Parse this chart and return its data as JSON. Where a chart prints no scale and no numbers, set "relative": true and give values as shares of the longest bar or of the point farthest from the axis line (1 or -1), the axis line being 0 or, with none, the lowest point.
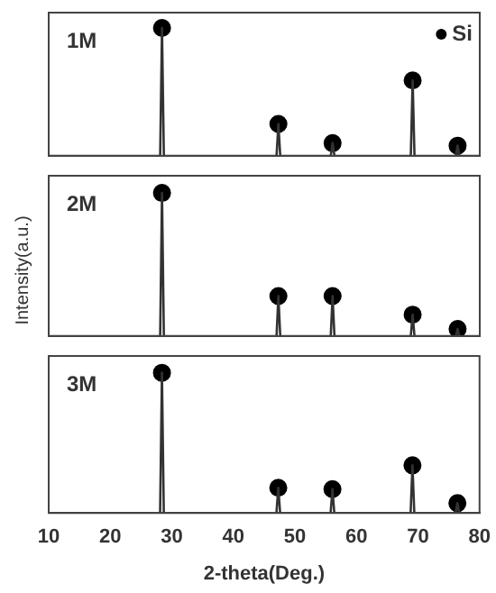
{
  "chart_data": [
    {
      "type": "line",
      "relative": true,
      "annotations": [
        "1M"
      ],
      "xlim": [
        10,
        80
      ],
      "xticks": [
        10,
        20,
        30,
        40,
        50,
        60,
        70,
        80
      ],
      "tick_labels": false,
      "legend": "top right",
      "series": [
        {
          "color": "#333333",
          "marker": "none",
          "x": [
            10,
            28.1,
            28.4,
            28.7,
            47.0,
            47.3,
            47.6,
            55.8,
            56.1,
            56.4,
            68.8,
            69.1,
            69.4,
            76.1,
            76.4,
            76.7,
            80
          ],
          "values": [
            0,
            0,
            1,
            0,
            0,
            0.25,
            0,
            0,
            0.1,
            0,
            0,
            0.59,
            0,
            0,
            0.08,
            0,
            0
          ]
        },
        {
          "type": "scatter",
          "name": "Si",
          "color": "#000000",
          "marker": "circle",
          "x": [
            28.4,
            47.3,
            56.1,
            69.1,
            76.4
          ],
          "values": [
            1,
            0.25,
            0.1,
            0.59,
            0.08
          ]
        }
      ]
    },
    {
      "type": "line",
      "relative": true,
      "annotations": [
        "2M"
      ],
      "ylabel": "Intensity(a.u.)",
      "xlim": [
        10,
        80
      ],
      "xticks": [
        10,
        20,
        30,
        40,
        50,
        60,
        70,
        80
      ],
      "tick_labels": false,
      "series": [
        {
          "color": "#333333",
          "marker": "none",
          "x": [
            10,
            28.1,
            28.4,
            28.7,
            47.0,
            47.3,
            47.6,
            55.8,
            56.1,
            56.4,
            68.8,
            69.1,
            69.4,
            76.1,
            76.4,
            76.7,
            80
          ],
          "values": [
            0,
            0,
            1,
            0,
            0,
            0.28,
            0,
            0,
            0.28,
            0,
            0,
            0.15,
            0,
            0,
            0.05,
            0,
            0
          ]
        },
        {
          "type": "scatter",
          "color": "#000000",
          "marker": "circle",
          "x": [
            28.4,
            47.3,
            56.1,
            69.1,
            76.4
          ],
          "values": [
            1,
            0.28,
            0.28,
            0.15,
            0.05
          ]
        }
      ]
    },
    {
      "type": "line",
      "relative": true,
      "annotations": [
        "3M"
      ],
      "xlabel": "2-theta(Deg.)",
      "xlim": [
        10,
        80
      ],
      "xticks": [
        10,
        20,
        30,
        40,
        50,
        60,
        70,
        80
      ],
      "tick_labels": "x",
      "series": [
        {
          "color": "#333333",
          "marker": "none",
          "x": [
            10,
            28.1,
            28.4,
            28.7,
            47.0,
            47.3,
            47.6,
            55.8,
            56.1,
            56.4,
            68.8,
            69.1,
            69.4,
            76.1,
            76.4,
            76.7,
            80
          ],
          "values": [
            0,
            0,
            1,
            0,
            0,
            0.18,
            0,
            0,
            0.17,
            0,
            0,
            0.34,
            0,
            0,
            0.07,
            0,
            0
          ]
        },
        {
          "type": "scatter",
          "color": "#000000",
          "marker": "circle",
          "x": [
            28.4,
            47.3,
            56.1,
            69.1,
            76.4
          ],
          "values": [
            1,
            0.18,
            0.17,
            0.34,
            0.07
          ]
        }
      ]
    }
  ]
}
